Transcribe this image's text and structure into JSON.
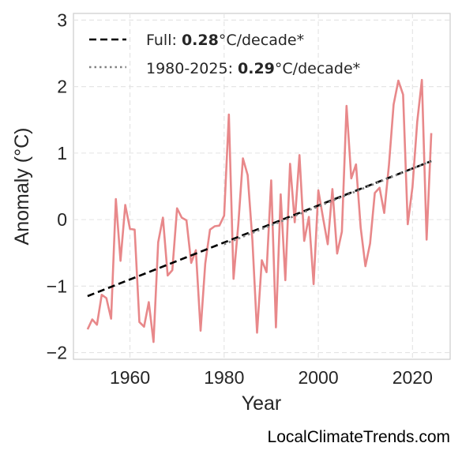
{
  "chart_data": {
    "type": "line",
    "xlabel": "Year",
    "ylabel": "Anomaly (°C)",
    "xlim": [
      1948,
      2028
    ],
    "ylim": [
      -2.1,
      3.1
    ],
    "xticks": [
      1960,
      1980,
      2000,
      2020
    ],
    "yticks": [
      -2,
      -1,
      0,
      1,
      2,
      3
    ],
    "ytick_labels": [
      "−2",
      "−1",
      "0",
      "1",
      "2",
      "3"
    ],
    "grid": true,
    "legend_position": "top-left",
    "series": [
      {
        "style": "solid",
        "color": "#e8888a",
        "x": [
          1951,
          1952,
          1953,
          1954,
          1955,
          1956,
          1957,
          1958,
          1959,
          1960,
          1961,
          1962,
          1963,
          1964,
          1965,
          1966,
          1967,
          1968,
          1969,
          1970,
          1971,
          1972,
          1973,
          1974,
          1975,
          1976,
          1977,
          1978,
          1979,
          1980,
          1981,
          1982,
          1983,
          1984,
          1985,
          1986,
          1987,
          1988,
          1989,
          1990,
          1991,
          1992,
          1993,
          1994,
          1995,
          1996,
          1997,
          1998,
          1999,
          2000,
          2001,
          2002,
          2003,
          2004,
          2005,
          2006,
          2007,
          2008,
          2009,
          2010,
          2011,
          2012,
          2013,
          2014,
          2015,
          2016,
          2017,
          2018,
          2019,
          2020,
          2021,
          2022,
          2023,
          2024
        ],
        "values": [
          -1.65,
          -1.5,
          -1.58,
          -1.13,
          -1.18,
          -1.49,
          0.31,
          -0.62,
          0.22,
          -0.14,
          -0.15,
          -1.54,
          -1.61,
          -1.24,
          -1.84,
          -0.34,
          0.03,
          -0.84,
          -0.76,
          0.17,
          0.03,
          -0.01,
          -0.65,
          -0.46,
          -1.67,
          -0.66,
          -0.15,
          -0.1,
          -0.09,
          0.06,
          1.58,
          -0.89,
          -0.08,
          0.92,
          0.67,
          -0.31,
          -1.7,
          -0.61,
          -0.79,
          0.59,
          -1.62,
          0.38,
          -0.91,
          0.84,
          -0.04,
          0.97,
          -0.32,
          0.04,
          -0.97,
          0.44,
          0.03,
          -0.37,
          0.46,
          -0.51,
          -0.18,
          1.71,
          0.62,
          0.83,
          -0.12,
          -0.7,
          -0.36,
          0.4,
          0.48,
          0.1,
          0.82,
          1.73,
          2.09,
          1.88,
          -0.07,
          0.49,
          1.47,
          2.1,
          -0.3,
          1.3
        ]
      },
      {
        "name": "Full",
        "style": "dashed",
        "color": "#000000",
        "x": [
          1951,
          2024
        ],
        "values": [
          -1.15,
          0.88
        ]
      },
      {
        "name": "1980-2025",
        "style": "dotted",
        "color": "#808080",
        "x": [
          1980,
          2024
        ],
        "values": [
          -0.37,
          0.88
        ]
      }
    ]
  },
  "legend": [
    {
      "prefix": "Full: ",
      "value": "0.28",
      "suffix": "°C/decade*"
    },
    {
      "prefix": "1980-2025: ",
      "value": "0.29",
      "suffix": "°C/decade*"
    }
  ],
  "watermark": "LocalClimateTrends.com"
}
